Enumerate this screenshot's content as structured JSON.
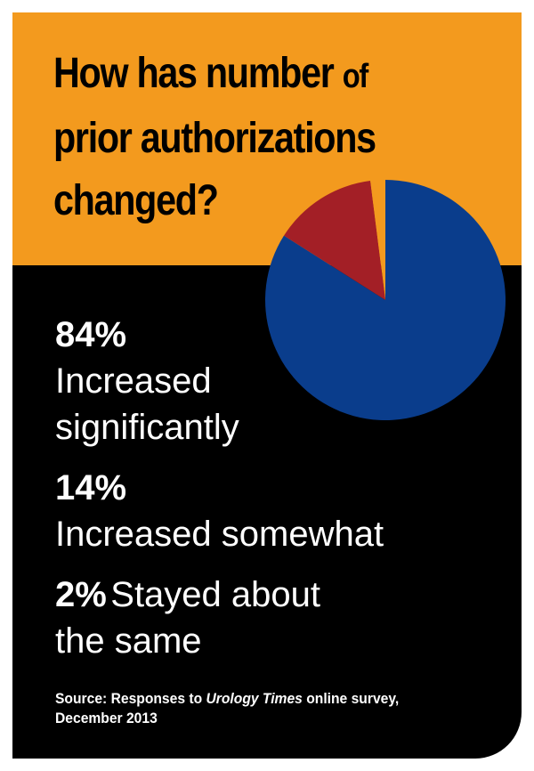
{
  "title": {
    "line1": "How has number",
    "word_of": "of",
    "line2": "prior authorizations",
    "line3": "changed?"
  },
  "stats": [
    {
      "pct": "84%",
      "label_line1": "Increased",
      "label_line2": "significantly"
    },
    {
      "pct": "14%",
      "label": "Increased somewhat"
    },
    {
      "pct": "2%",
      "label_line1": "Stayed about",
      "label_line2": "the same"
    }
  ],
  "source": {
    "prefix": "Source: Responses to",
    "publication": "Urology Times",
    "suffix": "online survey,",
    "date": "December 2013"
  },
  "colors": {
    "header_bg": "#f39a1e",
    "body_bg": "#000000",
    "increased_significantly": "#0a3d8c",
    "increased_somewhat": "#a31f26",
    "stayed_same": "#f39a1e"
  },
  "chart_data": {
    "type": "pie",
    "title": "How has number of prior authorizations changed?",
    "categories": [
      "Increased significantly",
      "Increased somewhat",
      "Stayed about the same"
    ],
    "values": [
      84,
      14,
      2
    ],
    "unit": "%"
  }
}
